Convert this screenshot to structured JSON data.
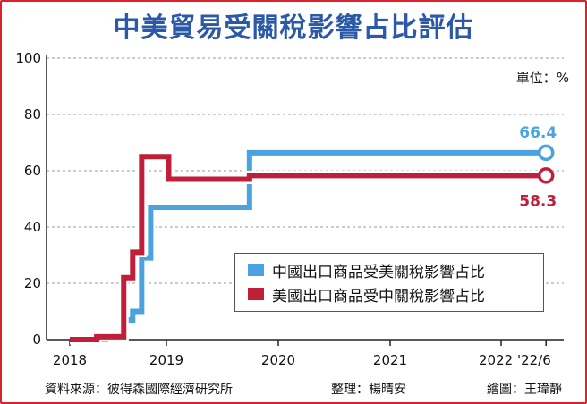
{
  "title": "中美貿易受關稅影響占比評估",
  "unit_label": "單位：%",
  "colors": {
    "china_series": "#4aa3df",
    "us_series": "#c01f3a",
    "title": "#2b59a8",
    "frame": "#d9222a"
  },
  "chart_data": {
    "type": "line",
    "step": true,
    "ylim": [
      0,
      100
    ],
    "yticks": [
      "0",
      "20",
      "40",
      "60",
      "80",
      "100"
    ],
    "xticks": [
      "2018",
      "2019",
      "2020",
      "2021",
      "2022 '22/6"
    ],
    "grid": true,
    "legend_placement": "bottom-right",
    "series": [
      {
        "name": "中國出口商品受美關稅影響占比",
        "color": "#4aa3df",
        "end_label": "66.4",
        "points": [
          [
            "2018-01",
            0
          ],
          [
            "2018-03",
            0
          ],
          [
            "2018-05",
            1
          ],
          [
            "2018-07",
            7
          ],
          [
            "2018-08",
            10
          ],
          [
            "2018-09",
            29
          ],
          [
            "2018-10",
            29
          ],
          [
            "2018-10",
            47
          ],
          [
            "2019-05",
            47
          ],
          [
            "2019-09",
            47
          ],
          [
            "2019-09",
            66.4
          ],
          [
            "2022-06",
            66.4
          ]
        ]
      },
      {
        "name": "美國出口商品受中關稅影響占比",
        "color": "#c01f3a",
        "end_label": "58.3",
        "points": [
          [
            "2018-01",
            0
          ],
          [
            "2018-03",
            0
          ],
          [
            "2018-04",
            1
          ],
          [
            "2018-07",
            1
          ],
          [
            "2018-07",
            22
          ],
          [
            "2018-08",
            22
          ],
          [
            "2018-08",
            31
          ],
          [
            "2018-09",
            31
          ],
          [
            "2018-09",
            65
          ],
          [
            "2018-12",
            65
          ],
          [
            "2018-12",
            57
          ],
          [
            "2019-06",
            57
          ],
          [
            "2019-09",
            58.3
          ],
          [
            "2022-06",
            58.3
          ]
        ]
      }
    ]
  },
  "footer": {
    "source": "資料來源：彼得森國際經濟研究所",
    "editor": "整理：楊晴安",
    "artist": "繪圖：王瑋靜"
  }
}
